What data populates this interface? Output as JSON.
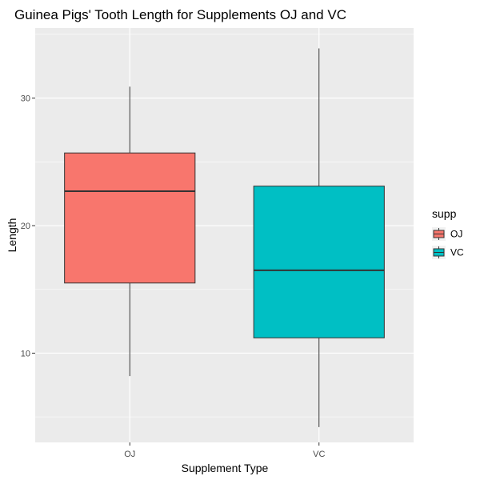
{
  "chart_data": {
    "type": "boxplot",
    "title": "Guinea Pigs' Tooth Length for Supplements OJ and VC",
    "xlabel": "Supplement Type",
    "ylabel": "Length",
    "categories": [
      "OJ",
      "VC"
    ],
    "ylim": [
      3.0,
      35.5
    ],
    "yticks": [
      10,
      20,
      30
    ],
    "grid": true,
    "legend": {
      "title": "supp",
      "position": "right",
      "entries": [
        "OJ",
        "VC"
      ]
    },
    "series": [
      {
        "name": "OJ",
        "color": "#F8766D",
        "min": 8.2,
        "q1": 15.5,
        "median": 22.7,
        "q3": 25.7,
        "max": 30.9
      },
      {
        "name": "VC",
        "color": "#00BFC4",
        "min": 4.2,
        "q1": 11.2,
        "median": 16.5,
        "q3": 23.1,
        "max": 33.9
      }
    ],
    "colors": {
      "panel": "#EBEBEB",
      "grid_major": "#FFFFFF",
      "outline": "#333333"
    }
  }
}
